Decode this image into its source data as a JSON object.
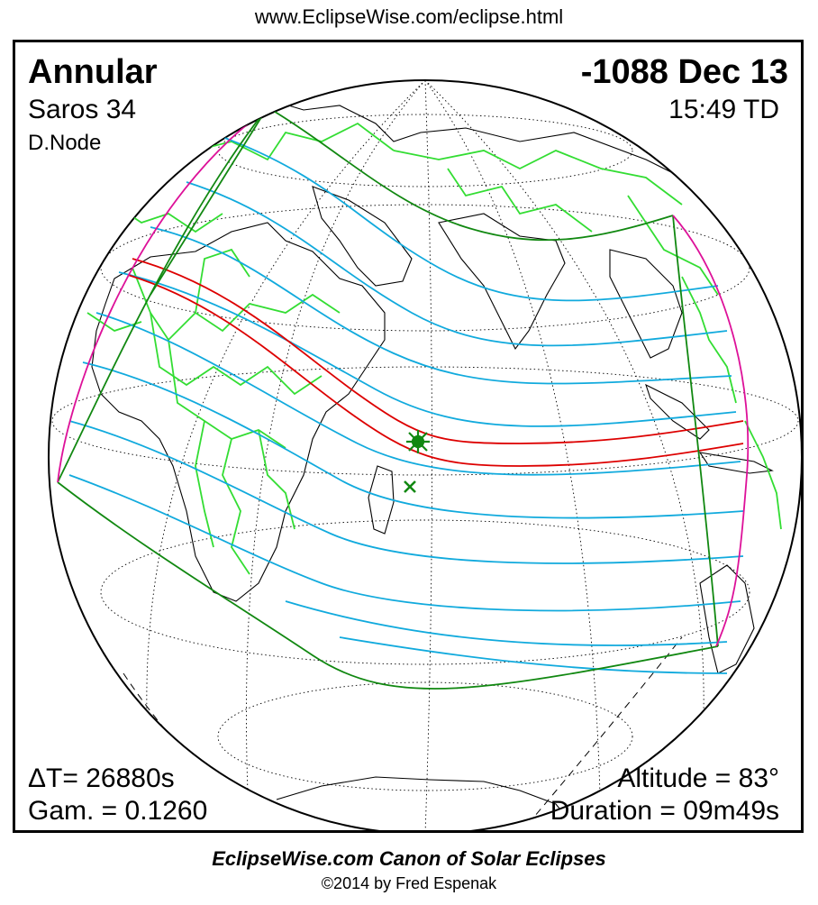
{
  "header": {
    "url": "www.EclipseWise.com/eclipse.html"
  },
  "eclipse": {
    "type": "Annular",
    "date": "-1088 Dec 13",
    "saros": "Saros  34",
    "time": "15:49 TD",
    "node": "D.Node",
    "delta_t": "ΔT=  26880s",
    "gamma": "Gam. = 0.1260",
    "altitude": "Altitude = 83°",
    "duration": "Duration = 09m49s"
  },
  "footer": {
    "title": "EclipseWise.com Canon of Solar Eclipses",
    "copyright": "©2014 by Fred Espenak"
  },
  "map_colors": {
    "globe_outline": "#000000",
    "coastline": "#000000",
    "borders": "#33dd33",
    "graticule": "#000000",
    "penumbra_limits": "#118811",
    "central_path": "#dd0000",
    "hour_lines": "#11aadd",
    "rise_set_curves": "#dd1199",
    "greatest_eclipse_marker": "#118811"
  }
}
